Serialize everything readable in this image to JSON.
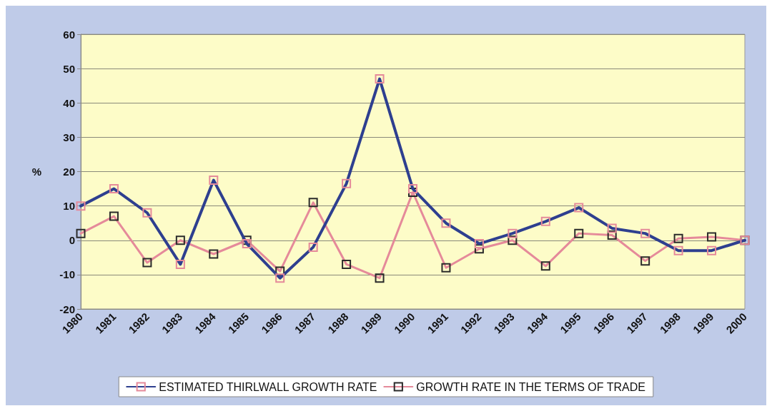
{
  "chart_data": {
    "type": "line",
    "ylabel": "%",
    "categories": [
      "1980",
      "1981",
      "1982",
      "1983",
      "1984",
      "1985",
      "1986",
      "1987",
      "1988",
      "1989",
      "1990",
      "1991",
      "1992",
      "1993",
      "1994",
      "1995",
      "1996",
      "1997",
      "1998",
      "1999",
      "2000"
    ],
    "series": [
      {
        "name": "ESTIMATED THIRLWALL GROWTH RATE",
        "color": "#2e3f8f",
        "values": [
          10,
          15,
          8,
          -7,
          17.5,
          -1,
          -11,
          -2,
          16.5,
          47,
          15,
          5,
          -1,
          2,
          5.5,
          9.5,
          3.5,
          2,
          -3,
          -3,
          0
        ]
      },
      {
        "name": "GROWTH RATE IN THE TERMS OF TRADE",
        "color": "#e58a9a",
        "values": [
          2,
          7,
          -6.5,
          0,
          -4,
          0,
          -9,
          11,
          -7,
          -11,
          14,
          -8,
          -2.5,
          0,
          -7.5,
          2,
          1.5,
          -6,
          0.5,
          1,
          0
        ]
      }
    ],
    "ylim": [
      -20,
      60
    ],
    "yticks": [
      -20,
      -10,
      0,
      10,
      20,
      30,
      40,
      50,
      60
    ],
    "grid": "y",
    "legend": "bottom",
    "marker": "square",
    "line_style": "solid"
  }
}
